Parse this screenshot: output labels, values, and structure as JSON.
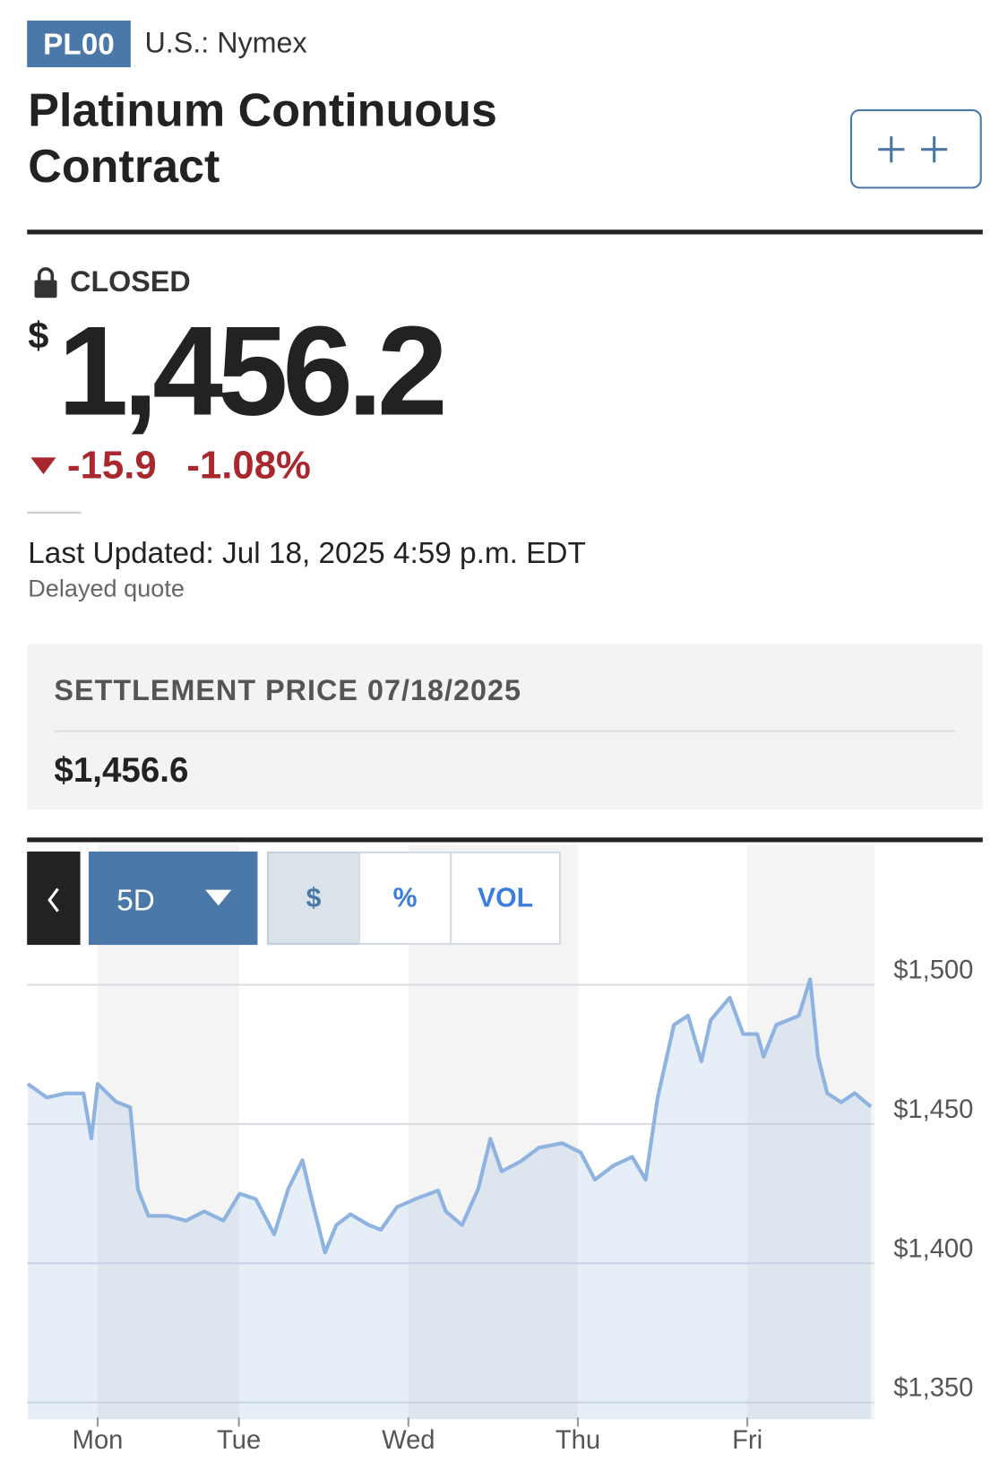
{
  "header": {
    "ticker": "PL00",
    "exchange": "U.S.: Nymex",
    "title": "Platinum Continuous Contract"
  },
  "quote": {
    "status": "CLOSED",
    "currency": "$",
    "price": "1,456.2",
    "change": "-15.9",
    "change_percent": "-1.08%",
    "last_updated": "Last Updated: Jul 18, 2025 4:59 p.m. EDT",
    "delay_note": "Delayed quote"
  },
  "settlement": {
    "label": "SETTLEMENT PRICE 07/18/2025",
    "value": "$1,456.6"
  },
  "controls": {
    "range": "5D",
    "tabs": [
      "$",
      "%",
      "VOL"
    ]
  },
  "chart_data": {
    "type": "line",
    "x": [
      -9.9,
      -7.2,
      -4.6,
      -2,
      -0.9,
      0,
      2.6,
      4.6,
      5.7,
      7.2,
      9.9,
      12.5,
      15.1,
      17.8,
      20.1,
      22.4,
      25,
      27,
      29,
      30.3,
      32.2,
      33.8,
      35.8,
      38.4,
      40.1,
      42.4,
      45.4,
      48.2,
      49.3,
      51.6,
      53.9,
      55.6,
      57.2,
      59.9,
      62.5,
      65.8,
      68.4,
      70.4,
      73,
      75.7,
      77.6,
      79.3,
      81.6,
      83.6,
      85.5,
      86.8,
      89.5,
      91.4,
      93.4,
      94.3,
      96.1,
      99.3,
      100.9,
      102,
      103.3,
      105.3,
      107.2,
      109.5
    ],
    "series": [
      {
        "name": "Platinum",
        "color": "#8fb3e0",
        "values": [
          1464.4,
          1459.5,
          1461,
          1461,
          1444.8,
          1464.4,
          1458,
          1456,
          1426.5,
          1417,
          1417,
          1415.3,
          1418.6,
          1415.3,
          1425,
          1423,
          1410.4,
          1426.8,
          1437,
          1423,
          1403.9,
          1413.7,
          1417.6,
          1413.7,
          1412,
          1420.2,
          1423.5,
          1426.1,
          1418.6,
          1413.7,
          1426.8,
          1444.7,
          1433,
          1436.6,
          1441.5,
          1443.1,
          1439.8,
          1430,
          1435,
          1438.2,
          1430,
          1459.5,
          1485.6,
          1488.9,
          1472.5,
          1487.3,
          1495.4,
          1482.3,
          1482.3,
          1474.2,
          1485.6,
          1488.9,
          1502,
          1474.2,
          1461.1,
          1457.8,
          1461.1,
          1456.2
        ]
      }
    ],
    "xlim": [
      -10,
      110
    ],
    "xticks": [
      {
        "value": 0,
        "label": "Mon"
      },
      {
        "value": 20,
        "label": "Tue"
      },
      {
        "value": 44,
        "label": "Wed"
      },
      {
        "value": 68,
        "label": "Thu"
      },
      {
        "value": 92,
        "label": "Fri"
      }
    ],
    "ylim": [
      1344,
      1515
    ],
    "yticks": [
      {
        "value": 1350,
        "label": "$1,350"
      },
      {
        "value": 1400,
        "label": "$1,400"
      },
      {
        "value": 1450,
        "label": "$1,450"
      },
      {
        "value": 1500,
        "label": "$1,500"
      }
    ],
    "grid": true
  }
}
